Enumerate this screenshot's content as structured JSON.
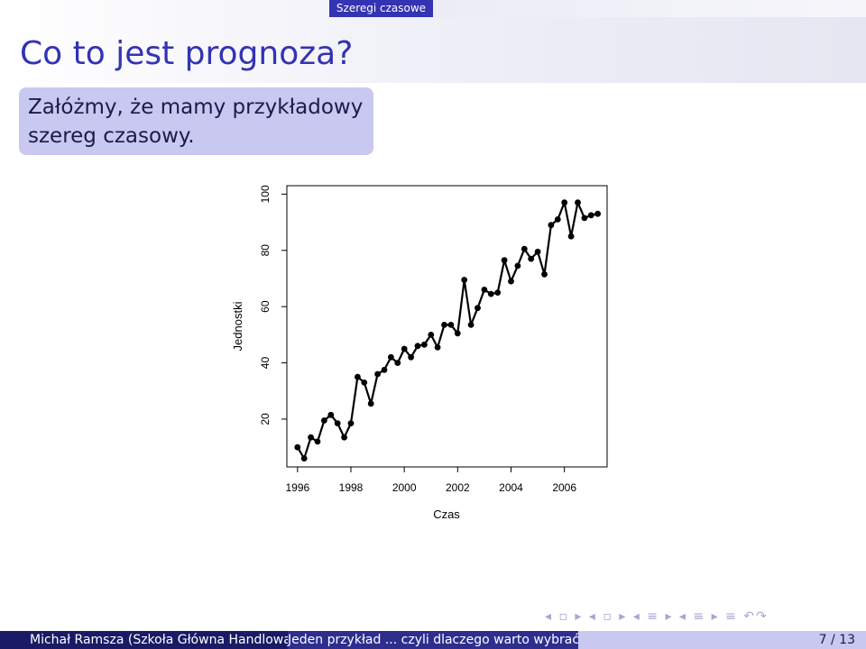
{
  "header": {
    "section": "Szeregi czasowe"
  },
  "frame": {
    "title": "Co to jest prognoza?",
    "block_text": "Załóżmy, że mamy przykładowy szereg czasowy."
  },
  "footer": {
    "author": "Michał Ramsza  (Szkoła Główna Handlowa)",
    "title": "Jeden przykład ... czyli dlaczego warto wybrać MIESI.",
    "page": "7 / 13"
  },
  "navigation": {
    "symbols": "◂ ▫ ▸ ◂ ▫ ▸ ◂ ≡ ▸ ◂ ≡ ▸ ≡ ↶↷"
  },
  "colors": {
    "accent": "#3333b3",
    "block_bg": "#c8c8f0",
    "footer_dark": "#1a1a66",
    "footer_mid": "#2e2e8f"
  },
  "chart_data": {
    "type": "line",
    "title": "",
    "xlabel": "Czas",
    "ylabel": "Jednostki",
    "xlim": [
      1995.6,
      2007.6
    ],
    "ylim": [
      3,
      103
    ],
    "xticks": [
      "1996",
      "1998",
      "2000",
      "2002",
      "2004",
      "2006"
    ],
    "yticks": [
      "20",
      "40",
      "60",
      "80",
      "100"
    ],
    "grid": false,
    "legend": "none",
    "series": [
      {
        "x": [
          1996.0,
          1996.25,
          1996.5,
          1996.75,
          1997.0,
          1997.25,
          1997.5,
          1997.75,
          1998.0,
          1998.25,
          1998.5,
          1998.75,
          1999.0,
          1999.25,
          1999.5,
          1999.75,
          2000.0,
          2000.25,
          2000.5,
          2000.75,
          2001.0,
          2001.25,
          2001.5,
          2001.75,
          2002.0,
          2002.25,
          2002.5,
          2002.75,
          2003.0,
          2003.25,
          2003.5,
          2003.75,
          2004.0,
          2004.25,
          2004.5,
          2004.75,
          2005.0,
          2005.25,
          2005.5,
          2005.75,
          2006.0,
          2006.25,
          2006.5,
          2006.75,
          2007.0,
          2007.25
        ],
        "values": [
          10,
          6,
          13.5,
          12,
          19.5,
          21.5,
          18.5,
          13.5,
          18.5,
          35,
          33,
          25.5,
          36,
          37.5,
          42,
          40,
          45,
          42,
          46,
          46.5,
          50,
          45.5,
          53.5,
          53.5,
          50.5,
          69.5,
          53.5,
          59.5,
          66,
          64.5,
          65,
          76.5,
          69,
          74.5,
          80.5,
          77,
          79.5,
          71.5,
          89,
          91,
          97,
          85,
          97,
          91.5,
          92.5,
          93
        ]
      }
    ]
  }
}
